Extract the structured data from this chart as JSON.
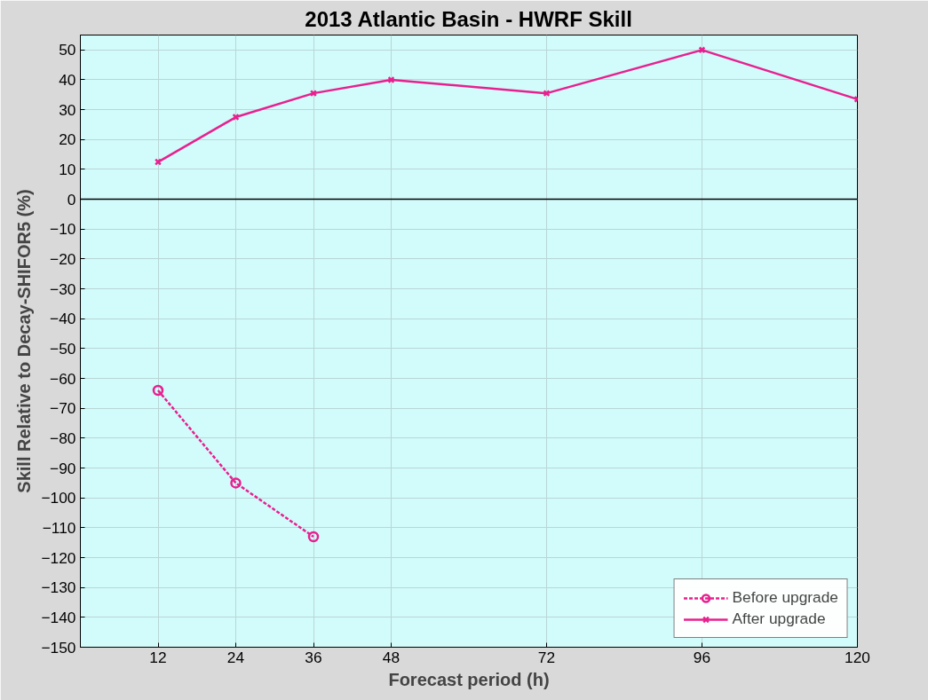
{
  "chart_data": {
    "type": "line",
    "title": "2013 Atlantic Basin - HWRF Skill",
    "xlabel": "Forecast period (h)",
    "ylabel": "Skill Relative to Decay-SHIFOR5 (%)",
    "x": [
      12,
      24,
      36,
      48,
      72,
      96,
      120
    ],
    "series": [
      {
        "name": "Before upgrade",
        "color": "#e8208f",
        "marker": "circle",
        "line_style": "dotted",
        "x": [
          12,
          24,
          36
        ],
        "values": [
          -64,
          -95,
          -113
        ]
      },
      {
        "name": "After upgrade",
        "color": "#e8208f",
        "marker": "cross",
        "line_style": "solid",
        "values": [
          12.5,
          27.5,
          35.5,
          40,
          35.5,
          50,
          33.5
        ]
      }
    ],
    "xlim": [
      0,
      120
    ],
    "xticks": [
      12,
      24,
      36,
      48,
      72,
      96,
      120
    ],
    "ylim": [
      -150,
      55
    ],
    "yticks": [
      -150,
      -140,
      -130,
      -120,
      -110,
      -100,
      -90,
      -80,
      -70,
      -60,
      -50,
      -40,
      -30,
      -20,
      -10,
      0,
      10,
      20,
      30,
      40,
      50
    ],
    "ref_lines": [
      {
        "axis": "y",
        "value": 0,
        "color": "#000000"
      }
    ],
    "grid": true,
    "legend": "bottom right"
  }
}
